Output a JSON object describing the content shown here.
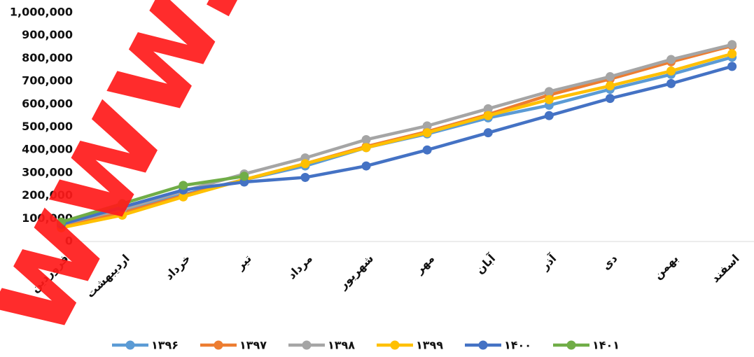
{
  "chart_data": {
    "type": "line",
    "categories": [
      "فروردین",
      "اردیبهشت",
      "خرداد",
      "تیر",
      "مرداد",
      "شهریور",
      "مهر",
      "آبان",
      "آذر",
      "دی",
      "بهمن",
      "اسفند"
    ],
    "series": [
      {
        "name": "۱۳۹۶",
        "color": "#5b9bd5",
        "values": [
          70000,
          130000,
          205000,
          270000,
          330000,
          410000,
          470000,
          540000,
          595000,
          665000,
          730000,
          805000
        ]
      },
      {
        "name": "۱۳۹۷",
        "color": "#ed7d31",
        "values": [
          65000,
          125000,
          200000,
          270000,
          340000,
          415000,
          480000,
          555000,
          640000,
          710000,
          785000,
          855000
        ]
      },
      {
        "name": "۱۳۹۸",
        "color": "#a5a5a5",
        "values": [
          75000,
          140000,
          220000,
          295000,
          365000,
          445000,
          505000,
          580000,
          655000,
          720000,
          795000,
          860000
        ]
      },
      {
        "name": "۱۳۹۹",
        "color": "#ffc000",
        "values": [
          60000,
          115000,
          195000,
          270000,
          340000,
          410000,
          475000,
          550000,
          620000,
          680000,
          745000,
          820000
        ]
      },
      {
        "name": "۱۴۰۰",
        "color": "#4472c4",
        "values": [
          75000,
          150000,
          225000,
          260000,
          280000,
          330000,
          400000,
          475000,
          550000,
          625000,
          690000,
          765000
        ]
      },
      {
        "name": "۱۴۰۱",
        "color": "#70ad47",
        "values": [
          85000,
          165000,
          245000,
          285000,
          null,
          null,
          null,
          null,
          null,
          null,
          null,
          null
        ]
      }
    ],
    "ylim": [
      0,
      1000000
    ],
    "yticks": [
      0,
      {
        "value": 100000,
        "label": "100,000"
      },
      {
        "value": 200000,
        "label": "200,000"
      },
      {
        "value": 300000,
        "label": "300,000"
      },
      {
        "value": 400000,
        "label": "400,000"
      },
      {
        "value": 500000,
        "label": "500,000"
      },
      {
        "value": 600000,
        "label": "600,000"
      },
      {
        "value": 700000,
        "label": "700,000"
      },
      {
        "value": 800000,
        "label": "800,000"
      },
      {
        "value": 900000,
        "label": "900,000"
      },
      {
        "value": 1000000,
        "label": "1,000,000"
      }
    ],
    "grid": false,
    "legend": "bottom",
    "watermark": "www.beta"
  }
}
